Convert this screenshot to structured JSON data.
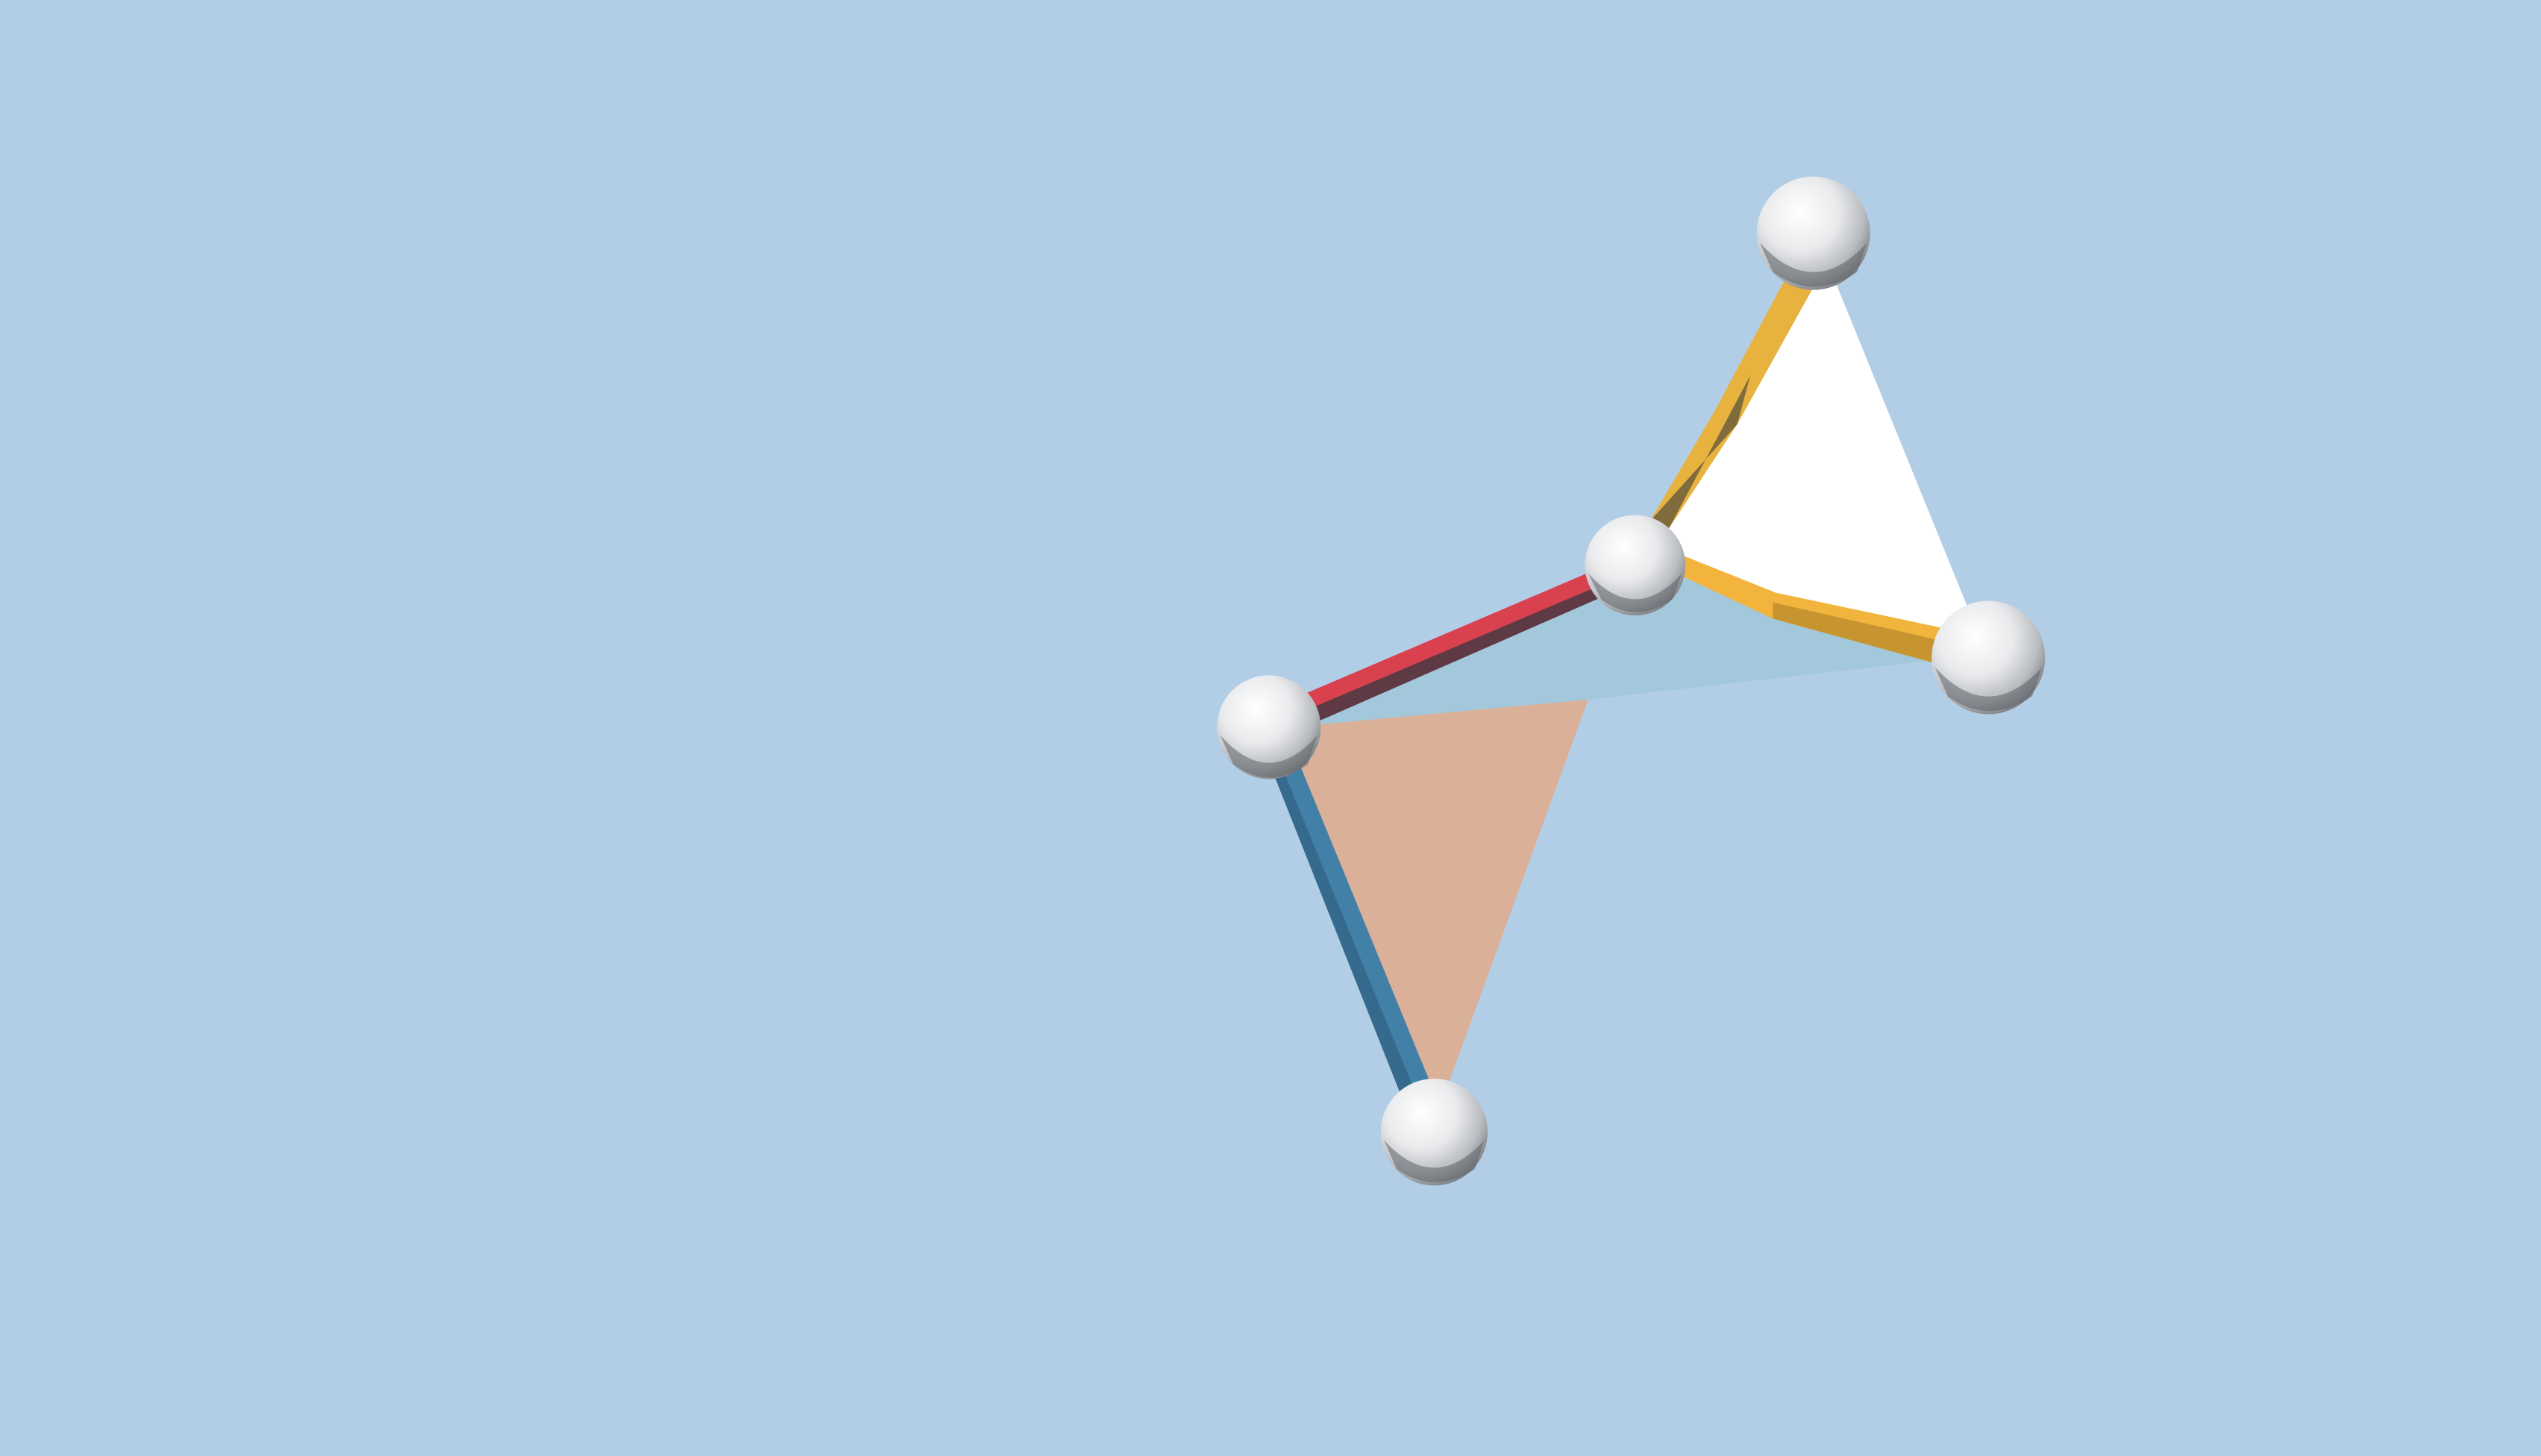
{
  "scene": {
    "background_color": "#b2cee6",
    "node_color": "#f2f3f5",
    "node_shade_color": "#8c8f93",
    "faces": [
      {
        "id": "white-triangle-face",
        "color": "#ffffff"
      },
      {
        "id": "light-blue-triangle-face",
        "color": "#a3c8dc"
      },
      {
        "id": "peach-triangle-face",
        "color": "#dab098"
      }
    ],
    "struts": [
      {
        "id": "top-yellow-strut",
        "color": "#e8b23e",
        "shade": "#7f6b3c"
      },
      {
        "id": "right-yellow-strut",
        "color": "#f2b43c",
        "shade": "#c79530"
      },
      {
        "id": "red-strut",
        "color": "#d9414f",
        "shade": "#5e3a44"
      },
      {
        "id": "blue-strut",
        "color": "#4280a8",
        "shade": "#356a8c"
      }
    ],
    "nodes": [
      {
        "id": "top-node"
      },
      {
        "id": "center-node"
      },
      {
        "id": "right-node"
      },
      {
        "id": "left-node"
      },
      {
        "id": "bottom-node"
      }
    ]
  }
}
